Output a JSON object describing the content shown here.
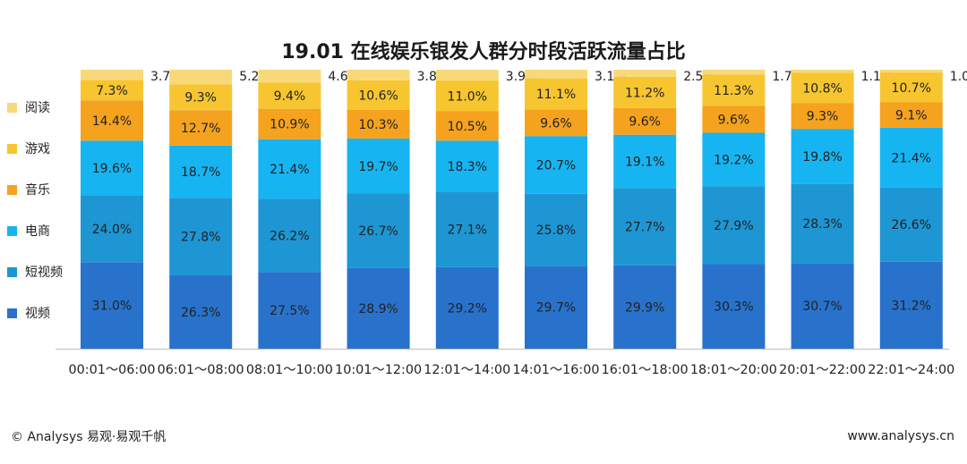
{
  "chart_data": {
    "type": "bar",
    "stacked": true,
    "title": "19.01 在线娱乐银发人群分时段活跃流量占比",
    "categories": [
      "00:01～06:00",
      "06:01～08:00",
      "08:01～10:00",
      "10:01～12:00",
      "12:01～14:00",
      "14:01～16:00",
      "16:01～18:00",
      "18:01～20:00",
      "20:01～22:00",
      "22:01～24:00"
    ],
    "series": [
      {
        "name": "视频",
        "color": "#2872cc",
        "values": [
          31.0,
          26.3,
          27.5,
          28.9,
          29.2,
          29.7,
          29.9,
          30.3,
          30.7,
          31.2
        ],
        "labels": [
          "31.0%",
          "26.3%",
          "27.5%",
          "28.9%",
          "29.2%",
          "29.7%",
          "29.9%",
          "30.3%",
          "30.7%",
          "31.2%"
        ]
      },
      {
        "name": "短视频",
        "color": "#1e96d4",
        "values": [
          24.0,
          27.8,
          26.2,
          26.7,
          27.1,
          25.8,
          27.7,
          27.9,
          28.3,
          26.6
        ],
        "labels": [
          "24.0%",
          "27.8%",
          "26.2%",
          "26.7%",
          "27.1%",
          "25.8%",
          "27.7%",
          "27.9%",
          "28.3%",
          "26.6%"
        ]
      },
      {
        "name": "电商",
        "color": "#17b4f2",
        "values": [
          19.6,
          18.7,
          21.4,
          19.7,
          18.3,
          20.7,
          19.1,
          19.2,
          19.8,
          21.4
        ],
        "labels": [
          "19.6%",
          "18.7%",
          "21.4%",
          "19.7%",
          "18.3%",
          "20.7%",
          "19.1%",
          "19.2%",
          "19.8%",
          "21.4%"
        ]
      },
      {
        "name": "音乐",
        "color": "#f5a21f",
        "values": [
          14.4,
          12.7,
          10.9,
          10.3,
          10.5,
          9.6,
          9.6,
          9.6,
          9.3,
          9.1
        ],
        "labels": [
          "14.4%",
          "12.7%",
          "10.9%",
          "10.3%",
          "10.5%",
          "9.6%",
          "9.6%",
          "9.6%",
          "9.3%",
          "9.1%"
        ]
      },
      {
        "name": "游戏",
        "color": "#f7c530",
        "values": [
          7.3,
          9.3,
          9.4,
          10.6,
          11.0,
          11.1,
          11.2,
          11.3,
          10.8,
          10.7
        ],
        "labels": [
          "7.3%",
          "9.3%",
          "9.4%",
          "10.6%",
          "11.0%",
          "11.1%",
          "11.2%",
          "11.3%",
          "10.8%",
          "10.7%"
        ]
      },
      {
        "name": "阅读",
        "color": "#f8d97a",
        "values": [
          3.7,
          5.2,
          4.6,
          3.8,
          3.9,
          3.1,
          2.5,
          1.7,
          1.1,
          1.0
        ],
        "labels": [
          "3.7%",
          "5.2%",
          "4.6%",
          "3.8%",
          "3.9%",
          "3.1%",
          "2.5%",
          "1.7%",
          "1.1%",
          "1.0%"
        ]
      }
    ],
    "ylim": [
      0,
      100
    ],
    "legend": [
      "阅读",
      "游戏",
      "音乐",
      "电商",
      "短视频",
      "视频"
    ],
    "legend_position": "left",
    "grid": false
  },
  "footer": {
    "left": "© Analysys 易观·易观千帆",
    "right": "www.analysys.cn"
  }
}
